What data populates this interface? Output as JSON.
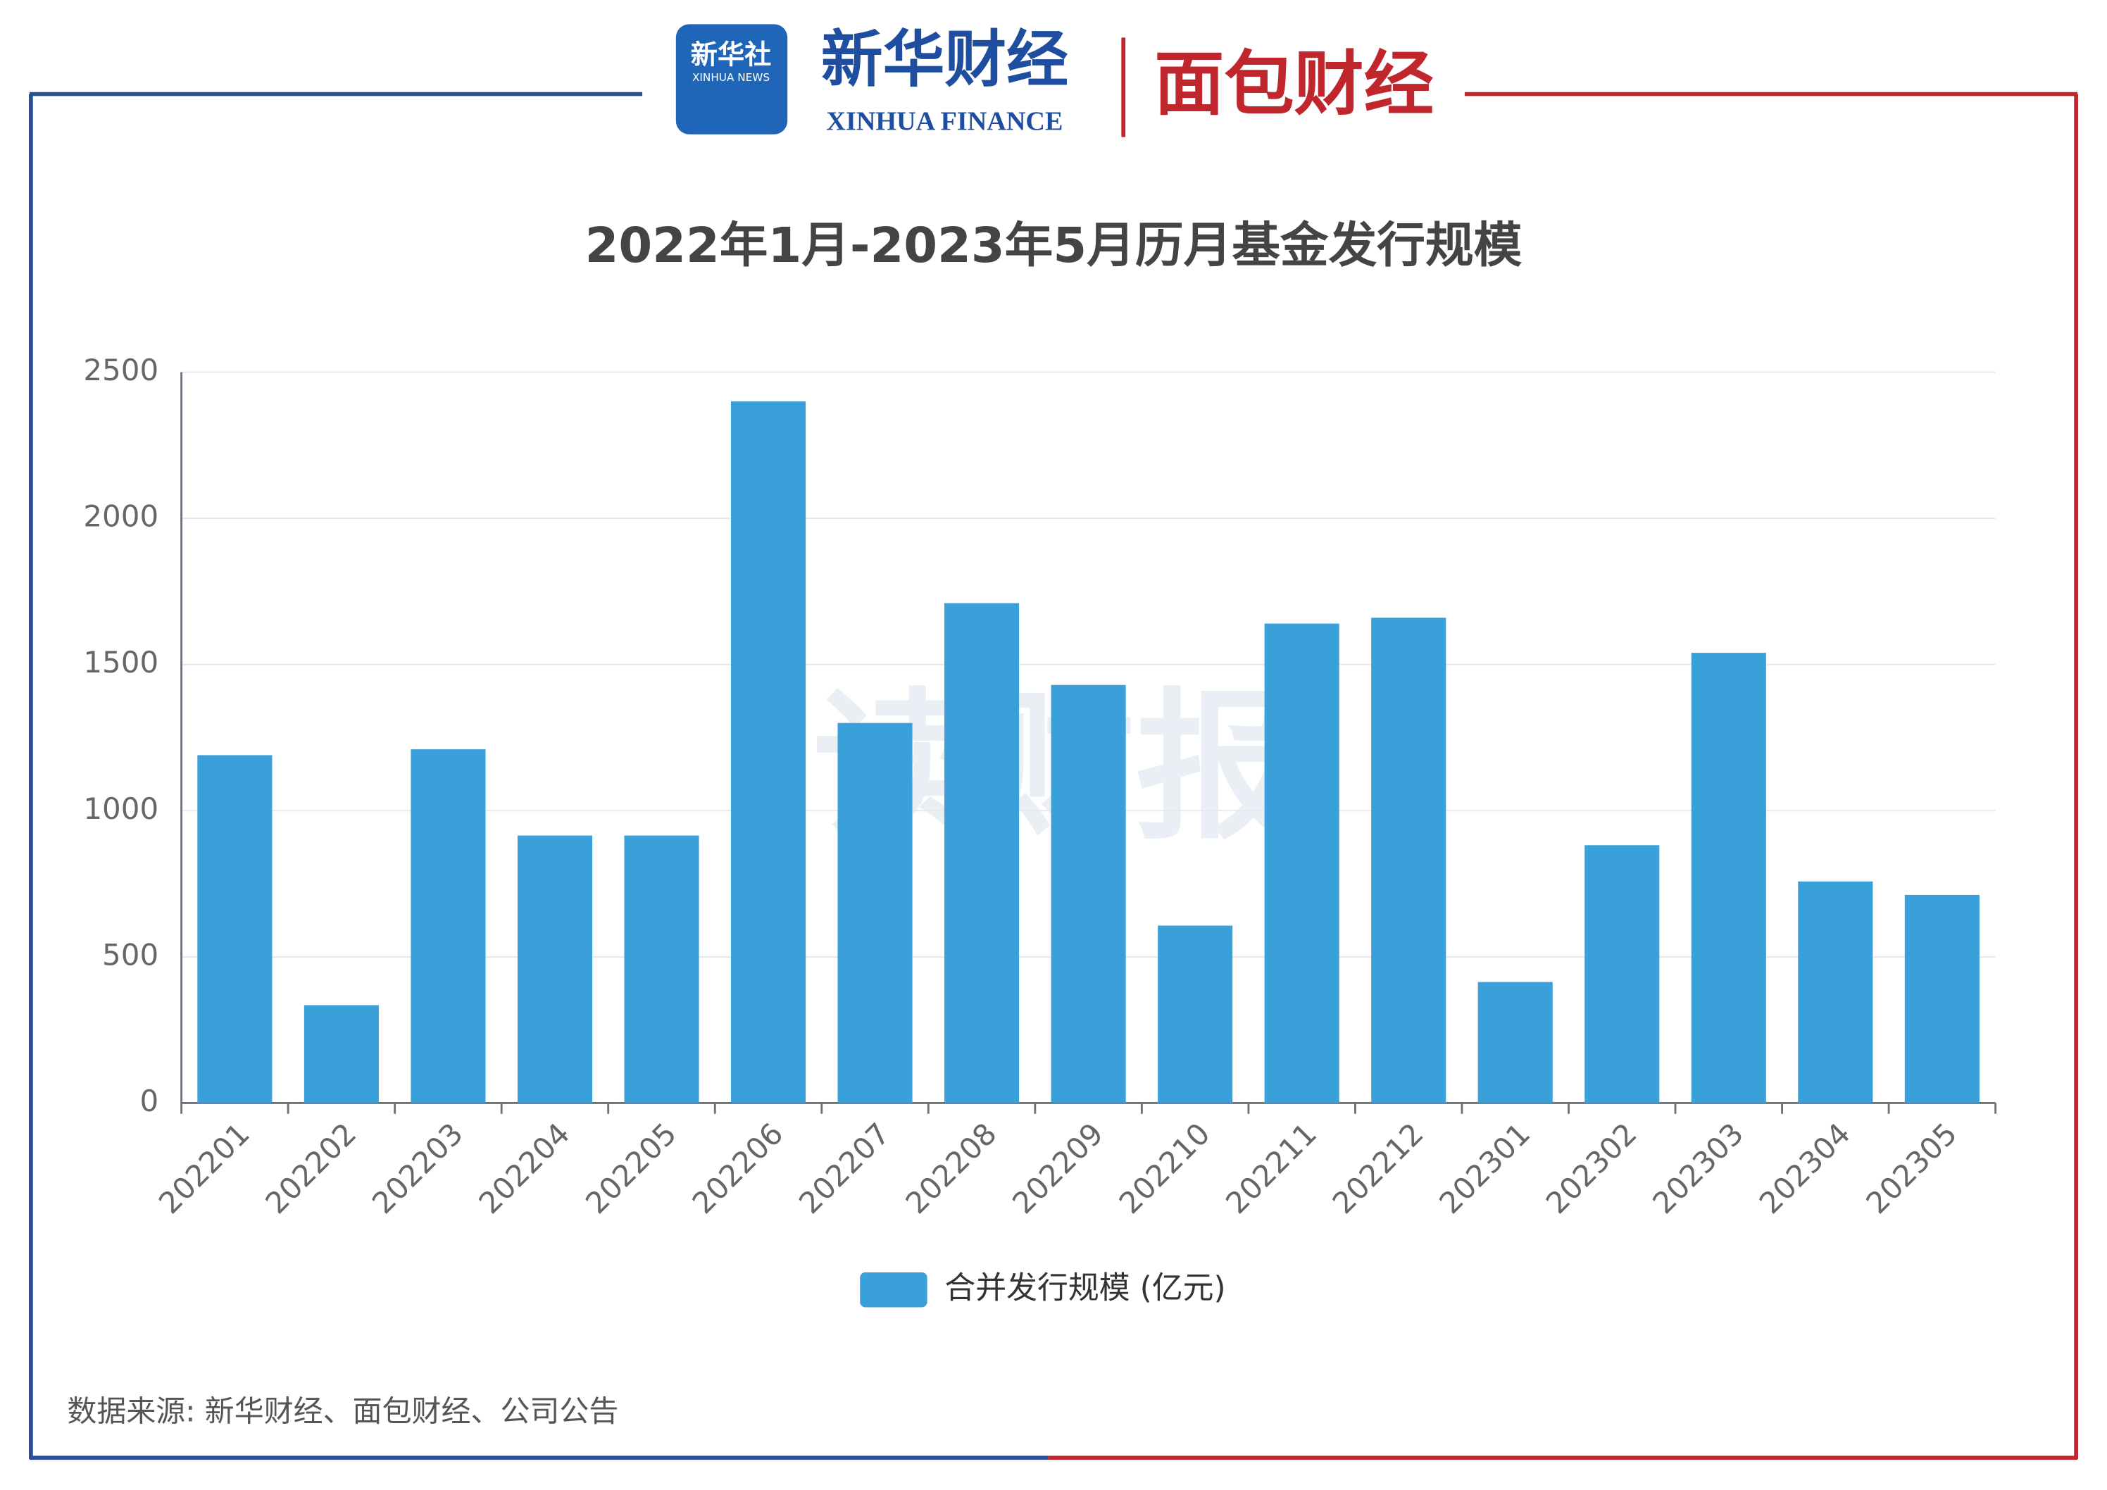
{
  "header": {
    "logo_text": "新华社",
    "logo_subtext": "XINHUA NEWS",
    "brand": "新华财经",
    "brand_en": "XINHUA FINANCE",
    "partner": "面包财经"
  },
  "watermark": "读财报",
  "source": "数据来源: 新华财经、面包财经、公司公告",
  "chart_data": {
    "type": "bar",
    "title": "2022年1月-2023年5月历月基金发行规模",
    "categories": [
      "202201",
      "202202",
      "202203",
      "202204",
      "202205",
      "202206",
      "202207",
      "202208",
      "202209",
      "202210",
      "202211",
      "202212",
      "202301",
      "202302",
      "202303",
      "202304",
      "202305"
    ],
    "series": [
      {
        "name": "合并发行规模 (亿元)",
        "color": "#3aa0d9",
        "values": [
          1190,
          335,
          1210,
          915,
          915,
          2400,
          1300,
          1710,
          1430,
          607,
          1640,
          1660,
          414,
          882,
          1540,
          758,
          712
        ]
      }
    ],
    "ylim": [
      0,
      2500
    ],
    "yticks": [
      0,
      500,
      1000,
      1500,
      2000,
      2500
    ],
    "grid": true,
    "legend": "bottom"
  }
}
